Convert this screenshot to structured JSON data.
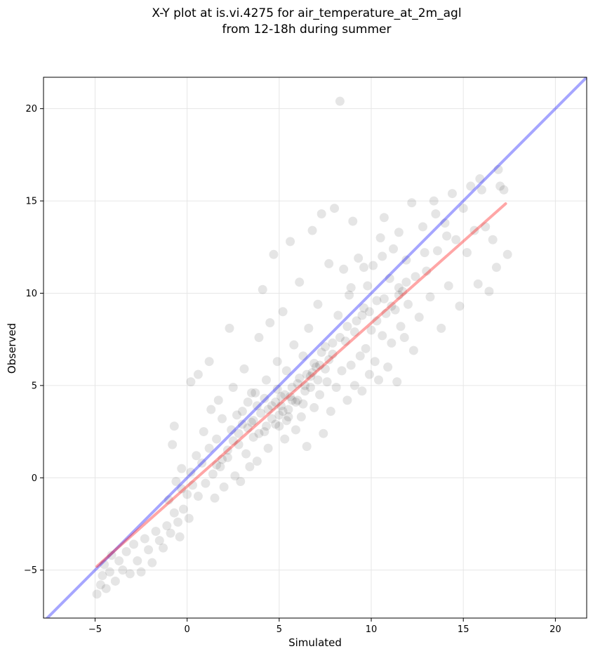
{
  "chart_data": {
    "type": "scatter",
    "title": [
      "X-Y plot at is.vi.4275 for air_temperature_at_2m_agl",
      "from 12-18h during summer"
    ],
    "xlabel": "Simulated",
    "ylabel": "Observed",
    "xlim": [
      -7.8,
      21.7
    ],
    "ylim": [
      -7.6,
      21.7
    ],
    "xticks": [
      -5,
      0,
      5,
      10,
      15,
      20
    ],
    "yticks": [
      -5,
      0,
      5,
      10,
      15,
      20
    ],
    "xtick_labels": [
      "−5",
      "0",
      "5",
      "10",
      "15",
      "20"
    ],
    "ytick_labels": [
      "−5",
      "0",
      "5",
      "10",
      "15",
      "20"
    ],
    "grid": true,
    "colors": {
      "points": "#000000",
      "identity_line": "#0000ff",
      "fit_line": "#ff0000",
      "grid": "#e6e6e6"
    },
    "identity_line": {
      "x": [
        -7.8,
        21.7
      ],
      "y": [
        -7.8,
        21.7
      ]
    },
    "fit_line": {
      "x": [
        -4.9,
        17.3
      ],
      "y": [
        -4.8,
        14.85
      ]
    },
    "series": [
      {
        "points": [
          [
            -4.9,
            -6.3
          ],
          [
            -4.7,
            -5.8
          ],
          [
            -4.6,
            -5.3
          ],
          [
            -4.4,
            -6.0
          ],
          [
            -4.2,
            -5.1
          ],
          [
            -4.5,
            -4.7
          ],
          [
            -4.1,
            -4.2
          ],
          [
            -3.9,
            -5.6
          ],
          [
            -3.7,
            -4.5
          ],
          [
            -3.5,
            -5.0
          ],
          [
            -3.3,
            -4.0
          ],
          [
            -3.1,
            -5.2
          ],
          [
            -2.9,
            -3.6
          ],
          [
            -2.7,
            -4.5
          ],
          [
            -2.5,
            -5.1
          ],
          [
            -2.3,
            -3.3
          ],
          [
            -2.1,
            -3.9
          ],
          [
            -1.9,
            -4.6
          ],
          [
            -1.7,
            -2.9
          ],
          [
            -1.5,
            -3.4
          ],
          [
            -1.3,
            -3.8
          ],
          [
            -1.1,
            -2.6
          ],
          [
            -0.9,
            -3.0
          ],
          [
            -0.7,
            -1.9
          ],
          [
            -0.5,
            -2.4
          ],
          [
            -0.4,
            -3.2
          ],
          [
            -0.3,
            -0.6
          ],
          [
            -0.2,
            -1.7
          ],
          [
            0.0,
            -0.9
          ],
          [
            0.1,
            -2.2
          ],
          [
            -1.0,
            -1.2
          ],
          [
            -0.8,
            1.8
          ],
          [
            -0.7,
            2.8
          ],
          [
            -0.3,
            0.5
          ],
          [
            -0.6,
            -0.2
          ],
          [
            0.2,
            0.3
          ],
          [
            0.3,
            -0.4
          ],
          [
            0.5,
            1.2
          ],
          [
            0.6,
            -1.0
          ],
          [
            0.8,
            0.8
          ],
          [
            0.9,
            2.5
          ],
          [
            1.0,
            -0.3
          ],
          [
            1.2,
            1.6
          ],
          [
            1.3,
            3.7
          ],
          [
            1.4,
            0.2
          ],
          [
            1.5,
            -1.1
          ],
          [
            1.6,
            2.1
          ],
          [
            1.8,
            0.6
          ],
          [
            1.9,
            3.2
          ],
          [
            2.0,
            -0.5
          ],
          [
            0.2,
            5.2
          ],
          [
            0.6,
            5.6
          ],
          [
            1.2,
            6.3
          ],
          [
            1.7,
            4.2
          ],
          [
            2.2,
            1.1
          ],
          [
            2.3,
            8.1
          ],
          [
            2.4,
            2.6
          ],
          [
            2.5,
            4.9
          ],
          [
            2.6,
            0.1
          ],
          [
            2.7,
            3.4
          ],
          [
            2.8,
            1.8
          ],
          [
            2.9,
            -0.2
          ],
          [
            3.0,
            2.9
          ],
          [
            3.1,
            5.9
          ],
          [
            3.2,
            1.3
          ],
          [
            3.3,
            4.1
          ],
          [
            3.4,
            0.6
          ],
          [
            3.5,
            3.0
          ],
          [
            3.6,
            2.2
          ],
          [
            3.7,
            4.6
          ],
          [
            3.8,
            0.9
          ],
          [
            3.9,
            7.6
          ],
          [
            4.0,
            3.5
          ],
          [
            4.1,
            10.2
          ],
          [
            4.2,
            2.5
          ],
          [
            4.3,
            5.3
          ],
          [
            4.4,
            1.6
          ],
          [
            4.5,
            8.4
          ],
          [
            4.6,
            3.9
          ],
          [
            4.7,
            12.1
          ],
          [
            4.8,
            2.9
          ],
          [
            4.9,
            6.3
          ],
          [
            5.0,
            3.4
          ],
          [
            5.1,
            4.4
          ],
          [
            5.2,
            9.0
          ],
          [
            5.3,
            2.1
          ],
          [
            5.4,
            5.8
          ],
          [
            5.5,
            3.7
          ],
          [
            5.6,
            12.8
          ],
          [
            5.7,
            4.2
          ],
          [
            5.8,
            7.2
          ],
          [
            5.9,
            2.6
          ],
          [
            6.0,
            5.1
          ],
          [
            6.1,
            10.6
          ],
          [
            6.2,
            3.3
          ],
          [
            6.3,
            6.6
          ],
          [
            6.4,
            4.7
          ],
          [
            6.5,
            1.7
          ],
          [
            6.6,
            8.1
          ],
          [
            6.7,
            5.5
          ],
          [
            6.8,
            13.4
          ],
          [
            6.9,
            3.8
          ],
          [
            7.0,
            6.0
          ],
          [
            7.1,
            9.4
          ],
          [
            7.2,
            4.5
          ],
          [
            7.3,
            14.3
          ],
          [
            7.4,
            2.4
          ],
          [
            7.5,
            7.1
          ],
          [
            7.6,
            5.2
          ],
          [
            7.7,
            11.6
          ],
          [
            7.8,
            3.6
          ],
          [
            7.9,
            6.7
          ],
          [
            8.0,
            14.6
          ],
          [
            8.1,
            4.9
          ],
          [
            8.2,
            8.8
          ],
          [
            8.3,
            20.4
          ],
          [
            8.4,
            5.8
          ],
          [
            8.5,
            11.3
          ],
          [
            8.6,
            7.4
          ],
          [
            8.7,
            4.2
          ],
          [
            8.8,
            9.9
          ],
          [
            8.9,
            6.1
          ],
          [
            9.0,
            13.9
          ],
          [
            9.1,
            5.0
          ],
          [
            9.2,
            8.5
          ],
          [
            9.3,
            11.9
          ],
          [
            9.4,
            6.6
          ],
          [
            9.5,
            4.7
          ],
          [
            9.6,
            9.2
          ],
          [
            9.7,
            7.0
          ],
          [
            9.8,
            10.4
          ],
          [
            9.9,
            5.6
          ],
          [
            10.0,
            8.0
          ],
          [
            10.1,
            11.5
          ],
          [
            10.2,
            6.3
          ],
          [
            10.3,
            9.6
          ],
          [
            10.4,
            5.3
          ],
          [
            10.5,
            13.0
          ],
          [
            10.6,
            7.7
          ],
          [
            10.7,
            14.1
          ],
          [
            10.8,
            8.9
          ],
          [
            10.9,
            6.0
          ],
          [
            11.0,
            10.8
          ],
          [
            11.1,
            7.3
          ],
          [
            11.2,
            12.4
          ],
          [
            11.3,
            9.1
          ],
          [
            11.4,
            5.2
          ],
          [
            11.5,
            13.3
          ],
          [
            11.6,
            8.2
          ],
          [
            11.7,
            10.1
          ],
          [
            11.8,
            7.6
          ],
          [
            11.9,
            11.8
          ],
          [
            12.0,
            9.4
          ],
          [
            12.2,
            14.9
          ],
          [
            12.3,
            6.9
          ],
          [
            12.4,
            10.9
          ],
          [
            12.6,
            8.7
          ],
          [
            12.8,
            13.6
          ],
          [
            13.0,
            11.2
          ],
          [
            13.2,
            9.8
          ],
          [
            13.4,
            15.0
          ],
          [
            13.6,
            12.3
          ],
          [
            13.8,
            8.1
          ],
          [
            14.0,
            13.8
          ],
          [
            14.2,
            10.4
          ],
          [
            14.4,
            15.4
          ],
          [
            14.6,
            12.9
          ],
          [
            14.8,
            9.3
          ],
          [
            15.0,
            14.6
          ],
          [
            15.2,
            12.2
          ],
          [
            15.4,
            15.8
          ],
          [
            15.6,
            13.4
          ],
          [
            15.8,
            10.5
          ],
          [
            16.0,
            15.6
          ],
          [
            16.2,
            13.6
          ],
          [
            16.4,
            10.1
          ],
          [
            16.6,
            12.9
          ],
          [
            16.8,
            11.4
          ],
          [
            17.0,
            15.8
          ],
          [
            17.2,
            15.6
          ],
          [
            17.4,
            12.1
          ],
          [
            16.9,
            16.7
          ],
          [
            15.9,
            16.2
          ],
          [
            14.1,
            13.1
          ],
          [
            13.5,
            14.3
          ],
          [
            12.9,
            12.2
          ],
          [
            11.5,
            9.9
          ],
          [
            10.6,
            12.0
          ],
          [
            9.6,
            11.4
          ],
          [
            8.9,
            10.3
          ],
          [
            3.5,
            4.6
          ],
          [
            3.8,
            3.9
          ],
          [
            4.2,
            4.3
          ],
          [
            4.6,
            3.2
          ],
          [
            4.9,
            4.8
          ],
          [
            5.1,
            3.9
          ],
          [
            5.3,
            4.5
          ],
          [
            5.5,
            3.3
          ],
          [
            5.7,
            4.9
          ],
          [
            5.9,
            4.1
          ],
          [
            6.1,
            5.4
          ],
          [
            6.3,
            4.0
          ],
          [
            6.5,
            5.6
          ],
          [
            6.7,
            4.9
          ],
          [
            6.9,
            6.2
          ],
          [
            7.1,
            5.3
          ],
          [
            7.3,
            6.8
          ],
          [
            7.5,
            5.9
          ],
          [
            7.7,
            6.4
          ],
          [
            7.9,
            7.3
          ],
          [
            4.4,
            3.7
          ],
          [
            4.8,
            4.1
          ],
          [
            5.2,
            3.6
          ],
          [
            5.6,
            4.4
          ],
          [
            6.0,
            4.2
          ],
          [
            6.4,
            5.0
          ],
          [
            6.8,
            5.7
          ],
          [
            7.2,
            6.1
          ],
          [
            5.0,
            2.8
          ],
          [
            5.4,
            3.1
          ],
          [
            3.0,
            3.6
          ],
          [
            3.3,
            2.7
          ],
          [
            3.6,
            3.1
          ],
          [
            3.9,
            2.4
          ],
          [
            4.3,
            2.8
          ],
          [
            2.5,
            2.0
          ],
          [
            2.8,
            2.4
          ],
          [
            2.2,
            1.5
          ],
          [
            1.9,
            1.0
          ],
          [
            1.6,
            0.7
          ],
          [
            8.3,
            7.6
          ],
          [
            8.7,
            8.2
          ],
          [
            9.1,
            7.9
          ],
          [
            9.5,
            8.8
          ],
          [
            9.9,
            9.0
          ],
          [
            10.3,
            8.5
          ],
          [
            10.7,
            9.7
          ],
          [
            11.1,
            9.3
          ],
          [
            11.5,
            10.3
          ],
          [
            11.9,
            10.6
          ]
        ]
      }
    ]
  }
}
